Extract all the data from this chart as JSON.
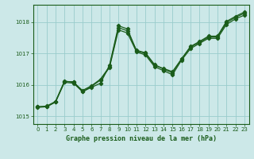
{
  "title": "Graphe pression niveau de la mer (hPa)",
  "bg_color": "#cce8e8",
  "line_color": "#1a5c1a",
  "grid_color": "#99cccc",
  "xlim": [
    -0.5,
    23.5
  ],
  "ylim": [
    1014.75,
    1018.55
  ],
  "yticks": [
    1015,
    1016,
    1017,
    1018
  ],
  "xticks": [
    0,
    1,
    2,
    3,
    4,
    5,
    6,
    7,
    8,
    9,
    10,
    11,
    12,
    13,
    14,
    15,
    16,
    17,
    18,
    19,
    20,
    21,
    22,
    23
  ],
  "series": {
    "line1": [
      1015.3,
      1015.3,
      1015.45,
      1016.1,
      1016.1,
      1015.78,
      1015.92,
      1016.05,
      1016.62,
      1017.88,
      1017.78,
      1017.08,
      1017.0,
      1016.62,
      1016.52,
      1016.42,
      1016.82,
      1017.22,
      1017.38,
      1017.55,
      1017.55,
      1018.02,
      1018.18,
      1018.32
    ],
    "line2": [
      1015.3,
      1015.32,
      1015.47,
      1016.12,
      1016.08,
      1015.82,
      1015.97,
      1016.18,
      1016.58,
      1017.82,
      1017.72,
      1017.1,
      1017.02,
      1016.65,
      1016.5,
      1016.38,
      1016.82,
      1017.2,
      1017.35,
      1017.52,
      1017.52,
      1017.98,
      1018.15,
      1018.28
    ],
    "line3": [
      1015.28,
      1015.3,
      1015.45,
      1016.08,
      1016.05,
      1015.78,
      1015.95,
      1016.15,
      1016.55,
      1017.75,
      1017.65,
      1017.05,
      1016.95,
      1016.58,
      1016.45,
      1016.32,
      1016.78,
      1017.15,
      1017.32,
      1017.48,
      1017.48,
      1017.92,
      1018.1,
      1018.22
    ]
  },
  "title_fontsize": 6.0,
  "tick_fontsize": 5.0,
  "ylabel_fontsize": 6.0
}
